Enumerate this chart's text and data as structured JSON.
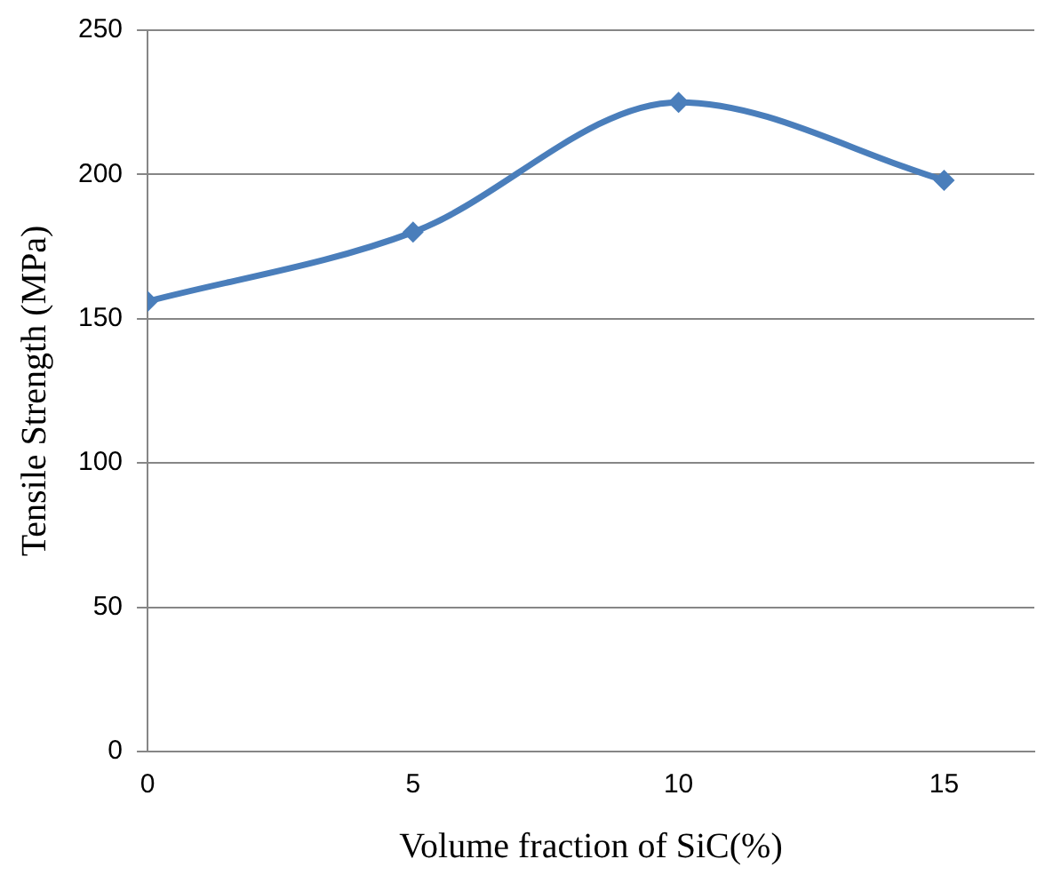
{
  "chart_data": {
    "type": "line",
    "xlabel": "Volume fraction of SiC(%)",
    "ylabel": "Tensile Strength (MPa)",
    "x": [
      0,
      5,
      10,
      15
    ],
    "series": [
      {
        "color": "#4a7ebb",
        "values": [
          156,
          180,
          225,
          198
        ]
      }
    ],
    "xlim": [
      0,
      16.7
    ],
    "xticks": [
      0,
      5,
      10,
      15
    ],
    "ylim": [
      0,
      250
    ],
    "yticks": [
      0,
      50,
      100,
      150,
      200,
      250
    ],
    "grid": "y",
    "legend": false,
    "marker": "diamond",
    "line_style": "solid"
  }
}
